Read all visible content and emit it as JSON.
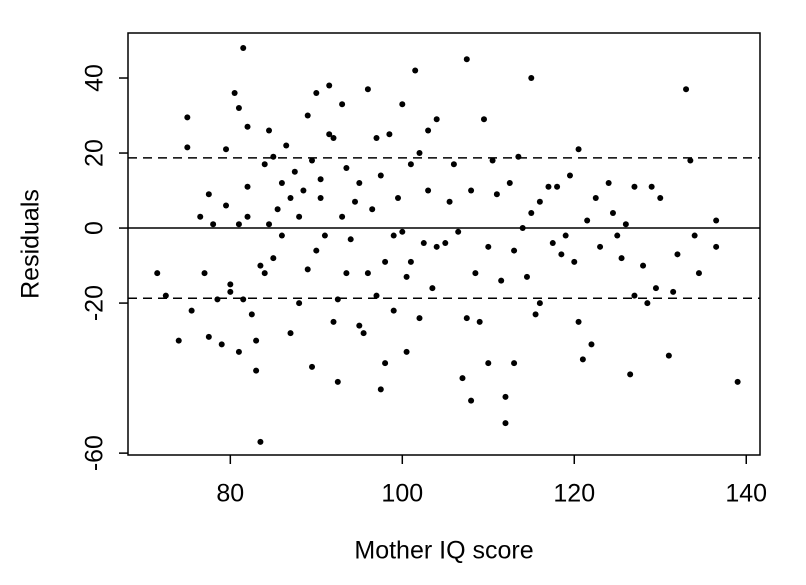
{
  "chart_data": {
    "type": "scatter",
    "x_label": "Mother IQ score",
    "y_label": "Residuals",
    "xlim": [
      68.1,
      141.6
    ],
    "ylim": [
      -60.5,
      52
    ],
    "xticks": [
      80,
      100,
      120,
      140
    ],
    "yticks": [
      -60,
      -20,
      0,
      20,
      40
    ],
    "hlines": [
      {
        "value": 0,
        "style": "solid"
      },
      {
        "value": 18.7,
        "style": "dashed"
      },
      {
        "value": -18.7,
        "style": "dashed"
      }
    ],
    "color": "#000000",
    "x": [
      71.5,
      72.5,
      74,
      75,
      75,
      75.5,
      76.5,
      77,
      77.5,
      77.5,
      78,
      78.5,
      79,
      79.5,
      79.5,
      80,
      80,
      80.5,
      81,
      81,
      81,
      81.5,
      81.5,
      82,
      82,
      82,
      82.5,
      83,
      83,
      83.5,
      83.5,
      84,
      84,
      84.5,
      84.5,
      85,
      85,
      85.5,
      86,
      86,
      86.5,
      87,
      87,
      87.5,
      88,
      88,
      88.5,
      89,
      89,
      89.5,
      89.5,
      90,
      90,
      90.5,
      90.5,
      91,
      91.5,
      91.5,
      92,
      92,
      92.5,
      92.5,
      93,
      93,
      93.5,
      93.5,
      94,
      94.5,
      95,
      95,
      95.5,
      96,
      96,
      96.5,
      97,
      97,
      97.5,
      97.5,
      98,
      98,
      98.5,
      99,
      99,
      99.5,
      100,
      100,
      100.5,
      100.5,
      101,
      101,
      101.5,
      102,
      102,
      102.5,
      103,
      103,
      103.5,
      104,
      104,
      105,
      105.5,
      106,
      106.5,
      107,
      107.5,
      107.5,
      108,
      108,
      108.5,
      109,
      109.5,
      110,
      110,
      110.5,
      111,
      111.5,
      112,
      112,
      112.5,
      113,
      113,
      113.5,
      114,
      114.5,
      115,
      115,
      115.5,
      116,
      116,
      117,
      117.5,
      118,
      118.5,
      119,
      119.5,
      120,
      120.5,
      120.5,
      121,
      121.5,
      122,
      122.5,
      123,
      124,
      124.5,
      125,
      125.5,
      126,
      126.5,
      127,
      127,
      128,
      128.5,
      129,
      129.5,
      130,
      131,
      131.5,
      132,
      133,
      133.5,
      134,
      134.5,
      136.5,
      136.5,
      139
    ],
    "values": [
      -12,
      -18,
      -30,
      29.5,
      21.5,
      -22,
      3,
      -12,
      9,
      -29,
      1,
      -19,
      -31,
      6,
      21,
      -15,
      -17,
      36,
      32,
      -33,
      1,
      48,
      -19,
      27,
      11,
      3,
      -23,
      -30,
      -38,
      -57,
      -10,
      17,
      -12,
      26,
      1,
      19,
      -8,
      5,
      12,
      -2,
      22,
      -28,
      8,
      15,
      -20,
      3,
      10,
      30,
      -11,
      -37,
      18,
      36,
      -6,
      13,
      8,
      -2,
      25,
      38,
      -25,
      24,
      -41,
      -19,
      33,
      3,
      16,
      -12,
      -3,
      7,
      -26,
      12,
      -28,
      37,
      -12,
      5,
      24,
      -18,
      14,
      -43,
      -9,
      -36,
      25,
      -2,
      -22,
      8,
      33,
      -1,
      -13,
      -33,
      17,
      -9,
      42,
      20,
      -24,
      -4,
      26,
      10,
      -16,
      29,
      -5,
      -4,
      7,
      17,
      -1,
      -40,
      45,
      -24,
      10,
      -46,
      -12,
      -25,
      29,
      -36,
      -5,
      18,
      9,
      -14,
      -45,
      -52,
      12,
      -6,
      -36,
      19,
      0,
      -13,
      40,
      4,
      -23,
      -20,
      7,
      11,
      -4,
      11,
      -7,
      -2,
      14,
      -9,
      21,
      -25,
      -35,
      2,
      -31,
      8,
      -5,
      12,
      4,
      -2,
      -8,
      1,
      -39,
      11,
      -18,
      -10,
      -20,
      11,
      -16,
      8,
      -34,
      -17,
      -7,
      37,
      18,
      -2,
      -12,
      2,
      -5,
      -41
    ]
  }
}
